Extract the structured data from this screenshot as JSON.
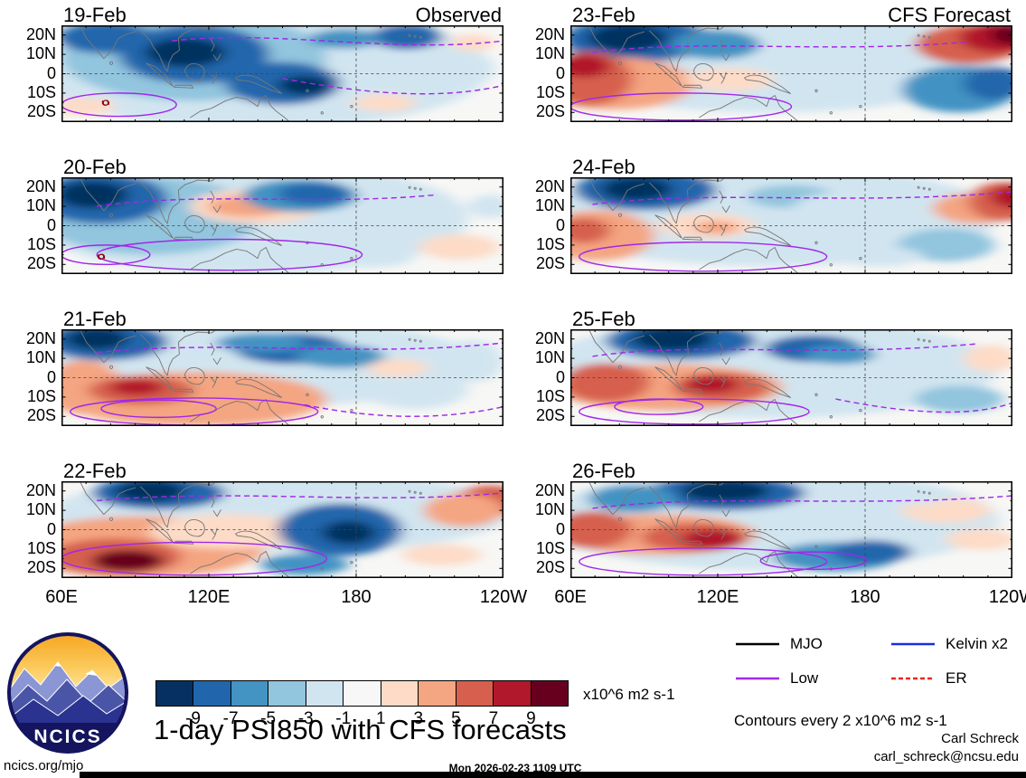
{
  "title": "1-day PSI850 with CFS forecasts",
  "logo": {
    "text": "NCICS"
  },
  "footer": {
    "site": "ncics.org/mjo",
    "timestamp": "Mon 2026-02-23 1109 UTC",
    "credit_name": "Carl Schreck",
    "credit_email": "carl_schreck@ncsu.edu"
  },
  "chart_data": {
    "type": "heatmap",
    "title": "1-day PSI850 with CFS forecasts",
    "variable": "850 hPa streamfunction (PSI850) anomalies, observed and CFS forecast",
    "units": "x10^6 m2 s-1",
    "contour_note": "Contours every 2 x10^6 m2 s-1",
    "contour_color": "#a028e8",
    "axes": {
      "lon_range": [
        60,
        240
      ],
      "lat_range": [
        25,
        -25
      ],
      "y_ticks": [
        {
          "label": "20N",
          "lat": 20
        },
        {
          "label": "10N",
          "lat": 10
        },
        {
          "label": "0",
          "lat": 0
        },
        {
          "label": "10S",
          "lat": -10
        },
        {
          "label": "20S",
          "lat": -20
        }
      ],
      "x_ticks": [
        {
          "label": "60E",
          "lon": 60
        },
        {
          "label": "120E",
          "lon": 120
        },
        {
          "label": "180",
          "lon": 180
        },
        {
          "label": "120W",
          "lon": 240
        }
      ]
    },
    "colorbar": {
      "colors": [
        "#053061",
        "#2166ac",
        "#4393c3",
        "#92c5de",
        "#d1e5f0",
        "#f7f7f7",
        "#fddbc7",
        "#f4a582",
        "#d6604d",
        "#b2182b",
        "#67001f"
      ],
      "ticks": [
        "-9",
        "-7",
        "-5",
        "-3",
        "-1",
        "1",
        "3",
        "5",
        "7",
        "9"
      ],
      "units": "x10^6 m2 s-1"
    },
    "legend": [
      {
        "label": "MJO",
        "color": "#000000",
        "dash": false
      },
      {
        "label": "Kelvin x2",
        "color": "#1830d8",
        "dash": false
      },
      {
        "label": "Low",
        "color": "#a028e8",
        "dash": false
      },
      {
        "label": "ER",
        "color": "#e8281e",
        "dash": true
      }
    ],
    "panels": [
      {
        "date": "19-Feb",
        "header": "Observed",
        "anomalies": [
          [
            0.45,
            0.45,
            0.52,
            0.62,
            4
          ],
          [
            0.3,
            0.33,
            0.3,
            0.45,
            3
          ],
          [
            0.1,
            0.13,
            0.11,
            0.16,
            1
          ],
          [
            0.3,
            0.3,
            0.17,
            0.3,
            1
          ],
          [
            0.28,
            0.28,
            0.09,
            0.15,
            0
          ],
          [
            0.5,
            0.6,
            0.13,
            0.22,
            1
          ],
          [
            0.55,
            0.62,
            0.06,
            0.1,
            0
          ],
          [
            0.78,
            0.12,
            0.08,
            0.13,
            1
          ],
          [
            0.64,
            0.14,
            0.08,
            0.1,
            2
          ],
          [
            0.9,
            0.45,
            0.08,
            0.2,
            4
          ],
          [
            0.93,
            0.18,
            0.05,
            0.09,
            6
          ],
          [
            0.73,
            0.8,
            0.07,
            0.09,
            6
          ],
          [
            0.05,
            0.84,
            0.07,
            0.09,
            6
          ]
        ],
        "purple_solid": [
          [
            0.13,
            0.82,
            0.13,
            0.12
          ]
        ],
        "purple_dashed": [
          [
            0.25,
            0.16,
            0.5,
            0.04,
            0.75,
            0.3,
            1.0,
            0.16
          ],
          [
            0.5,
            0.55,
            0.68,
            0.7,
            0.85,
            0.78,
            1.0,
            0.62
          ]
        ],
        "storm": [
          0.1,
          0.8
        ]
      },
      {
        "date": "20-Feb",
        "header": "",
        "anomalies": [
          [
            0.42,
            0.42,
            0.5,
            0.58,
            4
          ],
          [
            0.2,
            0.4,
            0.25,
            0.4,
            3
          ],
          [
            0.09,
            0.22,
            0.15,
            0.26,
            1
          ],
          [
            0.07,
            0.18,
            0.08,
            0.14,
            0
          ],
          [
            0.44,
            0.3,
            0.15,
            0.18,
            6
          ],
          [
            0.42,
            0.3,
            0.09,
            0.11,
            7
          ],
          [
            0.54,
            0.19,
            0.13,
            0.17,
            2
          ],
          [
            0.57,
            0.17,
            0.08,
            0.11,
            1
          ],
          [
            0.78,
            0.45,
            0.1,
            0.22,
            4
          ],
          [
            0.9,
            0.72,
            0.09,
            0.13,
            6
          ],
          [
            0.7,
            0.82,
            0.1,
            0.11,
            4
          ],
          [
            0.97,
            0.3,
            0.05,
            0.12,
            4
          ]
        ],
        "purple_solid": [
          [
            0.1,
            0.8,
            0.1,
            0.1
          ],
          [
            0.38,
            0.8,
            0.3,
            0.16
          ]
        ],
        "purple_dashed": [
          [
            0.08,
            0.3,
            0.32,
            0.14,
            0.58,
            0.3,
            0.85,
            0.18
          ]
        ],
        "storm": [
          0.09,
          0.82
        ]
      },
      {
        "date": "21-Feb",
        "header": "",
        "anomalies": [
          [
            0.45,
            0.35,
            0.5,
            0.45,
            4
          ],
          [
            0.1,
            0.13,
            0.14,
            0.19,
            1
          ],
          [
            0.08,
            0.1,
            0.07,
            0.11,
            0
          ],
          [
            0.3,
            0.72,
            0.3,
            0.28,
            7
          ],
          [
            0.05,
            0.6,
            0.09,
            0.28,
            7
          ],
          [
            0.18,
            0.63,
            0.12,
            0.15,
            8
          ],
          [
            0.17,
            0.6,
            0.06,
            0.08,
            9
          ],
          [
            0.52,
            0.2,
            0.13,
            0.16,
            1
          ],
          [
            0.45,
            0.14,
            0.1,
            0.1,
            2
          ],
          [
            0.63,
            0.28,
            0.1,
            0.12,
            2
          ],
          [
            0.8,
            0.62,
            0.12,
            0.2,
            4
          ],
          [
            0.93,
            0.33,
            0.07,
            0.22,
            4
          ],
          [
            0.76,
            0.4,
            0.07,
            0.09,
            6
          ]
        ],
        "purple_solid": [
          [
            0.3,
            0.85,
            0.28,
            0.14
          ],
          [
            0.22,
            0.82,
            0.13,
            0.09
          ]
        ],
        "purple_dashed": [
          [
            0.08,
            0.24,
            0.38,
            0.1,
            0.68,
            0.3,
            1.0,
            0.14
          ],
          [
            0.55,
            0.78,
            0.7,
            0.92,
            0.85,
            0.95,
            1.0,
            0.8
          ]
        ]
      },
      {
        "date": "22-Feb",
        "header": "",
        "anomalies": [
          [
            0.5,
            0.32,
            0.52,
            0.42,
            4
          ],
          [
            0.22,
            0.12,
            0.15,
            0.17,
            1
          ],
          [
            0.2,
            0.1,
            0.08,
            0.11,
            0
          ],
          [
            0.18,
            0.68,
            0.28,
            0.32,
            7
          ],
          [
            0.12,
            0.78,
            0.15,
            0.19,
            8
          ],
          [
            0.15,
            0.82,
            0.08,
            0.11,
            10
          ],
          [
            0.38,
            0.52,
            0.18,
            0.18,
            6
          ],
          [
            0.63,
            0.5,
            0.14,
            0.27,
            1
          ],
          [
            0.65,
            0.53,
            0.06,
            0.12,
            0
          ],
          [
            0.55,
            0.86,
            0.1,
            0.11,
            2
          ],
          [
            0.97,
            0.2,
            0.08,
            0.16,
            8
          ],
          [
            0.91,
            0.3,
            0.09,
            0.17,
            7
          ],
          [
            0.86,
            0.76,
            0.09,
            0.11,
            6
          ]
        ],
        "purple_solid": [
          [
            0.3,
            0.8,
            0.3,
            0.17
          ]
        ],
        "purple_dashed": [
          [
            0.08,
            0.2,
            0.4,
            0.07,
            0.7,
            0.25,
            1.0,
            0.12
          ]
        ]
      },
      {
        "date": "23-Feb",
        "header": "CFS Forecast",
        "anomalies": [
          [
            0.45,
            0.38,
            0.52,
            0.52,
            4
          ],
          [
            0.15,
            0.15,
            0.17,
            0.23,
            1
          ],
          [
            0.13,
            0.13,
            0.09,
            0.14,
            0
          ],
          [
            0.33,
            0.2,
            0.1,
            0.15,
            2
          ],
          [
            0.1,
            0.6,
            0.18,
            0.27,
            7
          ],
          [
            0.04,
            0.55,
            0.1,
            0.28,
            8
          ],
          [
            0.03,
            0.42,
            0.06,
            0.12,
            9
          ],
          [
            0.36,
            0.56,
            0.1,
            0.12,
            6
          ],
          [
            0.6,
            0.5,
            0.14,
            0.28,
            4
          ],
          [
            0.9,
            0.2,
            0.12,
            0.2,
            8
          ],
          [
            0.97,
            0.13,
            0.09,
            0.15,
            9
          ],
          [
            1.0,
            0.1,
            0.05,
            0.1,
            10
          ],
          [
            0.88,
            0.66,
            0.13,
            0.24,
            2
          ],
          [
            0.96,
            0.6,
            0.07,
            0.17,
            1
          ]
        ],
        "purple_solid": [
          [
            0.25,
            0.84,
            0.25,
            0.14
          ]
        ],
        "purple_dashed": [
          [
            0.05,
            0.28,
            0.3,
            0.13,
            0.58,
            0.3,
            0.9,
            0.17
          ]
        ]
      },
      {
        "date": "24-Feb",
        "header": "",
        "anomalies": [
          [
            0.45,
            0.4,
            0.52,
            0.52,
            4
          ],
          [
            0.17,
            0.13,
            0.16,
            0.21,
            1
          ],
          [
            0.15,
            0.12,
            0.08,
            0.12,
            0
          ],
          [
            0.06,
            0.6,
            0.13,
            0.26,
            7
          ],
          [
            0.03,
            0.55,
            0.06,
            0.13,
            8
          ],
          [
            0.31,
            0.5,
            0.11,
            0.13,
            6
          ],
          [
            0.33,
            0.52,
            0.05,
            0.07,
            7
          ],
          [
            0.5,
            0.2,
            0.1,
            0.12,
            3
          ],
          [
            0.62,
            0.35,
            0.12,
            0.2,
            4
          ],
          [
            0.92,
            0.32,
            0.1,
            0.16,
            7
          ],
          [
            0.98,
            0.25,
            0.08,
            0.2,
            8
          ],
          [
            1.0,
            0.2,
            0.05,
            0.12,
            9
          ],
          [
            0.85,
            0.7,
            0.11,
            0.17,
            3
          ],
          [
            0.7,
            0.82,
            0.1,
            0.1,
            4
          ]
        ],
        "purple_solid": [
          [
            0.3,
            0.82,
            0.28,
            0.15
          ]
        ],
        "purple_dashed": [
          [
            0.05,
            0.28,
            0.33,
            0.12,
            0.63,
            0.3,
            1.0,
            0.15
          ]
        ]
      },
      {
        "date": "25-Feb",
        "header": "",
        "anomalies": [
          [
            0.45,
            0.4,
            0.52,
            0.52,
            4
          ],
          [
            0.25,
            0.12,
            0.17,
            0.19,
            1
          ],
          [
            0.23,
            0.1,
            0.09,
            0.12,
            0
          ],
          [
            0.55,
            0.2,
            0.11,
            0.14,
            1
          ],
          [
            0.61,
            0.26,
            0.08,
            0.1,
            2
          ],
          [
            0.22,
            0.6,
            0.26,
            0.24,
            7
          ],
          [
            0.08,
            0.55,
            0.1,
            0.2,
            8
          ],
          [
            0.34,
            0.6,
            0.11,
            0.15,
            8
          ],
          [
            0.32,
            0.57,
            0.06,
            0.09,
            9
          ],
          [
            0.76,
            0.45,
            0.11,
            0.2,
            4
          ],
          [
            0.88,
            0.72,
            0.1,
            0.14,
            3
          ],
          [
            0.95,
            0.3,
            0.06,
            0.14,
            6
          ]
        ],
        "purple_solid": [
          [
            0.28,
            0.85,
            0.26,
            0.13
          ],
          [
            0.2,
            0.8,
            0.1,
            0.08
          ]
        ],
        "purple_dashed": [
          [
            0.05,
            0.28,
            0.28,
            0.12,
            0.56,
            0.3,
            0.92,
            0.15
          ],
          [
            0.6,
            0.72,
            0.75,
            0.86,
            0.9,
            0.92,
            1.0,
            0.76
          ]
        ]
      },
      {
        "date": "26-Feb",
        "header": "",
        "anomalies": [
          [
            0.45,
            0.4,
            0.52,
            0.52,
            4
          ],
          [
            0.35,
            0.12,
            0.18,
            0.18,
            1
          ],
          [
            0.35,
            0.1,
            0.1,
            0.11,
            0
          ],
          [
            0.14,
            0.18,
            0.1,
            0.14,
            2
          ],
          [
            0.2,
            0.55,
            0.22,
            0.21,
            7
          ],
          [
            0.05,
            0.5,
            0.09,
            0.19,
            8
          ],
          [
            0.28,
            0.58,
            0.12,
            0.15,
            8
          ],
          [
            0.32,
            0.6,
            0.07,
            0.1,
            9
          ],
          [
            0.6,
            0.78,
            0.14,
            0.15,
            2
          ],
          [
            0.68,
            0.73,
            0.09,
            0.12,
            1
          ],
          [
            0.85,
            0.3,
            0.1,
            0.13,
            6
          ],
          [
            0.93,
            0.6,
            0.08,
            0.11,
            6
          ],
          [
            0.78,
            0.14,
            0.08,
            0.1,
            4
          ]
        ],
        "purple_solid": [
          [
            0.3,
            0.83,
            0.28,
            0.14
          ],
          [
            0.55,
            0.82,
            0.12,
            0.09
          ]
        ],
        "purple_dashed": [
          [
            0.05,
            0.28,
            0.33,
            0.12,
            0.63,
            0.28,
            1.0,
            0.15
          ]
        ]
      }
    ]
  }
}
